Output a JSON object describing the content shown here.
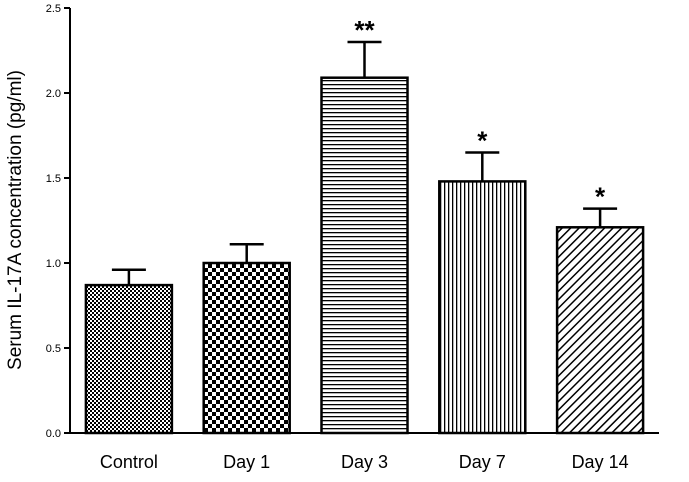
{
  "chart_data": {
    "type": "bar",
    "title": "",
    "xlabel": "",
    "ylabel": "Serum IL-17A concentration (pg/ml)",
    "ylim": [
      0,
      2.5
    ],
    "yticks": [
      "0.0",
      "0.5",
      "1.0",
      "1.5",
      "2.0",
      "2.5"
    ],
    "categories": [
      "Control",
      "Day 1",
      "Day 3",
      "Day 7",
      "Day 14"
    ],
    "values": [
      0.87,
      1.0,
      2.09,
      1.48,
      1.21
    ],
    "errors": [
      0.09,
      0.11,
      0.21,
      0.17,
      0.11
    ],
    "significance": [
      "",
      "",
      "**",
      "*",
      "*"
    ],
    "patterns": [
      "fine-checker",
      "checker",
      "horizontal-lines",
      "vertical-lines",
      "diagonal-lines"
    ],
    "grid": false,
    "legend": "none"
  }
}
